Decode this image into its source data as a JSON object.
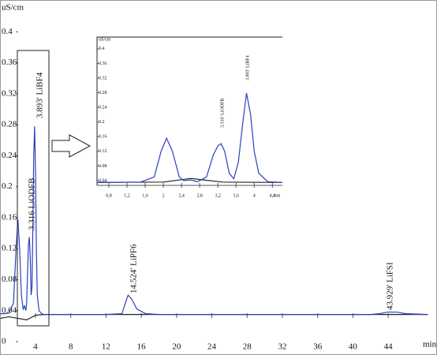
{
  "chart_data": [
    {
      "type": "line",
      "ylabel": "uS/cm",
      "xlabel": "min",
      "xlim": [
        0,
        49
      ],
      "ylim": [
        0,
        0.436
      ],
      "xticks": [
        4,
        8,
        12,
        16,
        20,
        24,
        28,
        32,
        36,
        40,
        44
      ],
      "yticks": [
        0,
        0.04,
        0.08,
        0.12,
        0.16,
        0.2,
        0.24,
        0.28,
        0.32,
        0.36,
        0.4
      ],
      "series": [
        {
          "color": "#2b3fbf",
          "x": [
            0,
            0.5,
            1,
            1.5,
            1.8,
            2,
            2.2,
            2.4,
            2.6,
            2.75,
            2.9,
            3.0,
            3.1,
            3.2,
            3.3,
            3.4,
            3.5,
            3.6,
            3.7,
            3.8,
            3.9,
            4.0,
            4.1,
            4.2,
            4.4,
            4.7,
            5,
            8,
            12,
            13.8,
            14.2,
            14.5,
            14.9,
            15.5,
            16.5,
            18,
            30,
            40,
            42,
            43,
            43.9,
            45,
            46,
            48.5
          ],
          "values": [
            0.036,
            0.036,
            0.037,
            0.05,
            0.12,
            0.158,
            0.12,
            0.06,
            0.042,
            0.046,
            0.04,
            0.05,
            0.09,
            0.125,
            0.135,
            0.11,
            0.06,
            0.07,
            0.15,
            0.24,
            0.278,
            0.22,
            0.12,
            0.06,
            0.04,
            0.036,
            0.035,
            0.035,
            0.035,
            0.036,
            0.05,
            0.06,
            0.055,
            0.042,
            0.036,
            0.035,
            0.035,
            0.035,
            0.035,
            0.036,
            0.038,
            0.038,
            0.036,
            0.035
          ]
        },
        {
          "color": "#222222",
          "x": [
            0,
            1,
            2,
            3,
            4,
            5,
            48.5
          ],
          "values": [
            0.03,
            0.032,
            0.03,
            0.028,
            0.034,
            0.035,
            0.035
          ]
        }
      ],
      "annotations": [
        "3.316 LiODFB",
        "3.893' LiBF4",
        "14.524' LiPF6",
        "43.929' LiFSI"
      ]
    },
    {
      "type": "line",
      "ylabel": "uS/cm",
      "xlabel": "min",
      "xlim": [
        0.54,
        4.62
      ],
      "ylim": [
        0.027,
        0.432
      ],
      "xticks": [
        {
          "value": 0.8,
          "label": "0,8"
        },
        {
          "value": 1.2,
          "label": "1,2"
        },
        {
          "value": 1.6,
          "label": "1,6"
        },
        2,
        {
          "value": 2.4,
          "label": "2,4"
        },
        {
          "value": 2.8,
          "label": "2,8"
        },
        {
          "value": 3.2,
          "label": "3,2"
        },
        {
          "value": 3.6,
          "label": "3,6"
        },
        4,
        {
          "value": 4.4,
          "label": "4,4"
        }
      ],
      "yticks": [
        0.04,
        0.08,
        0.12,
        0.16,
        0.2,
        0.24,
        0.28,
        0.32,
        0.36,
        0.4
      ],
      "series": [
        {
          "color": "#2b3fbf",
          "x": [
            0.54,
            1.5,
            1.8,
            1.95,
            2.07,
            2.2,
            2.35,
            2.45,
            2.6,
            2.75,
            2.95,
            3.1,
            3.2,
            3.27,
            3.35,
            3.45,
            3.55,
            3.65,
            3.75,
            3.83,
            3.92,
            4.0,
            4.1,
            4.3,
            4.62
          ],
          "values": [
            0.035,
            0.036,
            0.05,
            0.12,
            0.156,
            0.12,
            0.05,
            0.04,
            0.042,
            0.037,
            0.05,
            0.11,
            0.135,
            0.141,
            0.12,
            0.06,
            0.045,
            0.09,
            0.2,
            0.279,
            0.22,
            0.12,
            0.06,
            0.037,
            0.035
          ]
        },
        {
          "color": "#222222",
          "x": [
            0.54,
            2.0,
            2.6,
            3.3,
            4.62
          ],
          "values": [
            0.035,
            0.036,
            0.046,
            0.036,
            0.035
          ]
        }
      ],
      "annotations": [
        "3.316' LiODFB",
        "3.893' LiBF4"
      ]
    }
  ]
}
